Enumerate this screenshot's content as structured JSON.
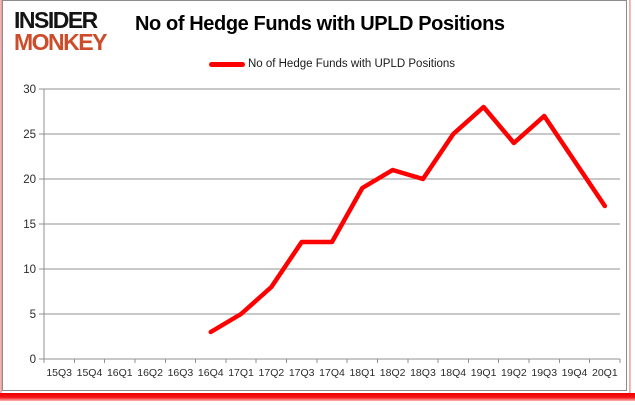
{
  "logo": {
    "line1": "INSIDER",
    "line2": "MONKEY"
  },
  "header": {
    "title": "No of Hedge Funds with UPLD Positions"
  },
  "legend": {
    "label": "No of Hedge Funds with UPLD Positions",
    "color": "#ff0000"
  },
  "chart_data": {
    "type": "line",
    "title": "No of Hedge Funds with UPLD Positions",
    "categories": [
      "15Q3",
      "15Q4",
      "16Q1",
      "16Q2",
      "16Q3",
      "16Q4",
      "17Q1",
      "17Q2",
      "17Q3",
      "17Q4",
      "18Q1",
      "18Q2",
      "18Q3",
      "18Q4",
      "19Q1",
      "19Q2",
      "19Q3",
      "19Q4",
      "20Q1"
    ],
    "series": [
      {
        "name": "No of Hedge Funds with UPLD Positions",
        "color": "#ff0000",
        "values": [
          null,
          null,
          null,
          null,
          null,
          3,
          5,
          8,
          13,
          13,
          19,
          21,
          20,
          25,
          28,
          24,
          27,
          22,
          17
        ]
      }
    ],
    "xlabel": "",
    "ylabel": "",
    "ylim": [
      0,
      30
    ],
    "yticks": [
      0,
      5,
      10,
      15,
      20,
      25,
      30
    ],
    "grid": "horizontal-major",
    "legend_position": "top",
    "colors": {
      "line": "#ff0000",
      "gridline": "#919191",
      "axis_line": "#919191",
      "tick_text": "#2b2b2b"
    }
  }
}
